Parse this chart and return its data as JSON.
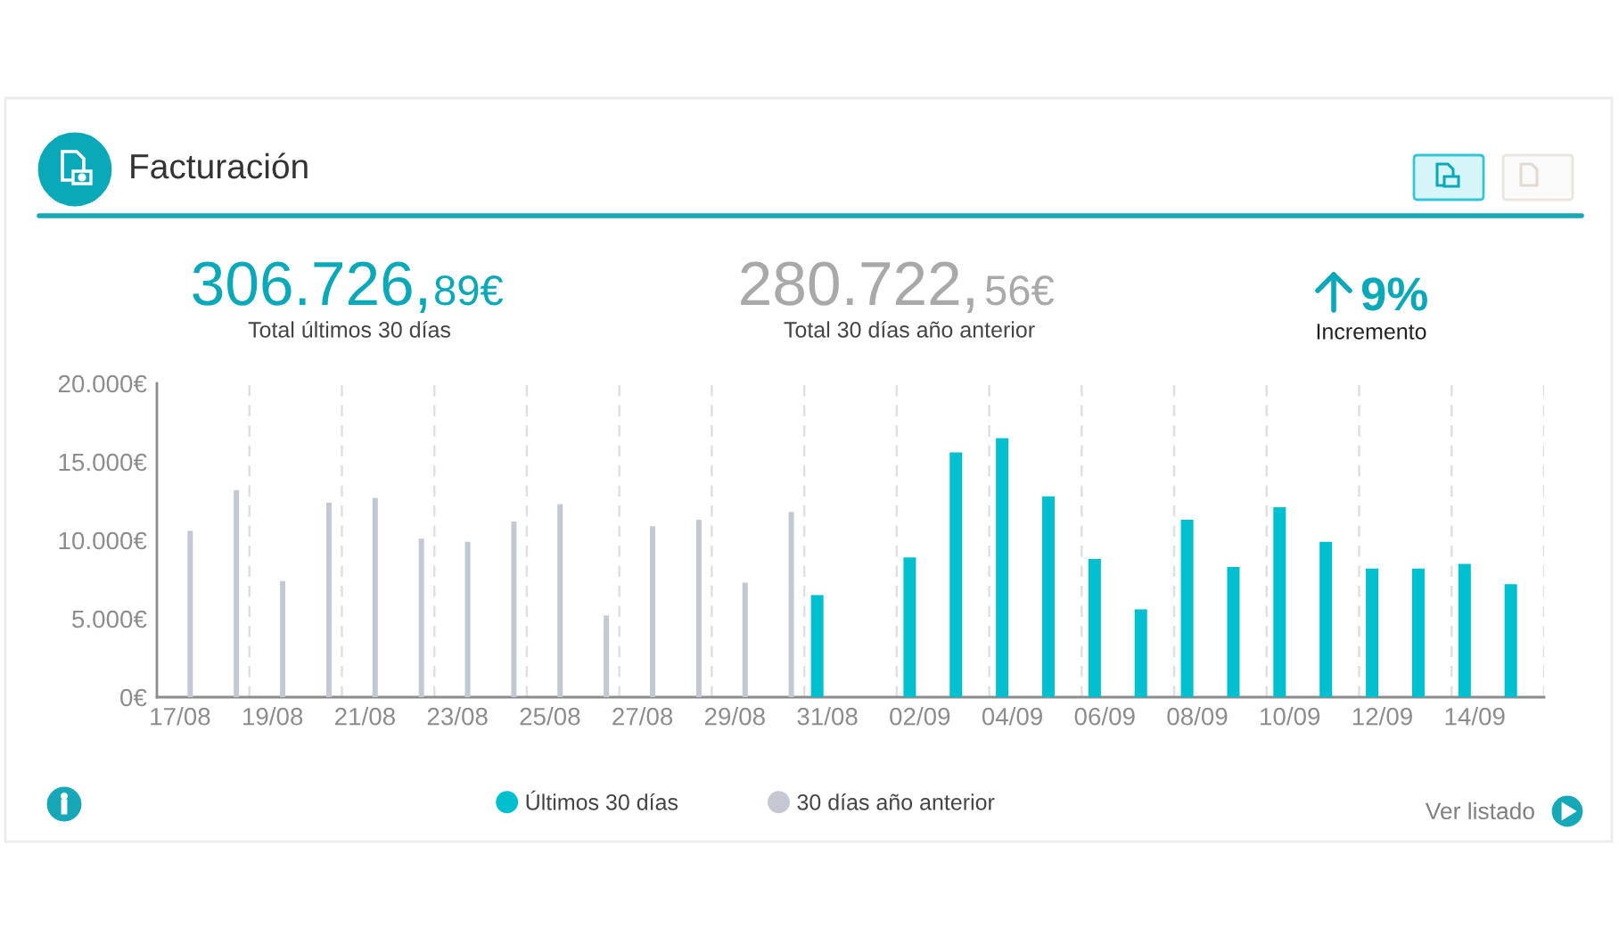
{
  "chart_data": {
    "type": "bar",
    "title": "Facturación",
    "categories": [
      "17/08",
      null,
      "19/08",
      null,
      "21/08",
      null,
      "23/08",
      null,
      "25/08",
      null,
      "27/08",
      null,
      "29/08",
      null,
      "31/08",
      null,
      "02/09",
      null,
      "04/09",
      null,
      "06/09",
      null,
      "08/09",
      null,
      "10/09",
      null,
      "12/09",
      null,
      "14/09",
      null
    ],
    "series": [
      {
        "name": "Últimos 30 días",
        "color": "#00bfcf",
        "values": [
          null,
          null,
          null,
          null,
          null,
          null,
          null,
          null,
          null,
          null,
          null,
          null,
          null,
          null,
          6500,
          null,
          8900,
          15600,
          16500,
          12800,
          8800,
          5600,
          11300,
          8300,
          12100,
          9900,
          8200,
          8200,
          8500,
          7200
        ]
      },
      {
        "name": "30 días año anterior",
        "color": "#c3c8d2",
        "values": [
          10600,
          13200,
          7400,
          12400,
          12700,
          10100,
          9900,
          11200,
          12300,
          5200,
          10900,
          11300,
          7300,
          11800,
          null,
          null,
          null,
          null,
          null,
          null,
          null,
          null,
          null,
          null,
          null,
          null,
          null,
          null,
          null,
          null
        ]
      }
    ],
    "ylim": [
      0,
      20000
    ],
    "yticks": [
      {
        "value": 0,
        "label": "0€"
      },
      {
        "value": 5000,
        "label": "5.000€"
      },
      {
        "value": 10000,
        "label": "10.000€"
      },
      {
        "value": 15000,
        "label": "15.000€"
      },
      {
        "value": 20000,
        "label": "20.000€"
      }
    ],
    "grid": "x",
    "legend": "bottom",
    "annotations": [
      "306.726,",
      "89€",
      "Total últimos 30 días",
      "280.722,",
      "56€",
      "Total 30 días año anterior",
      "9%",
      "Incremento",
      "Ver listado"
    ]
  }
}
